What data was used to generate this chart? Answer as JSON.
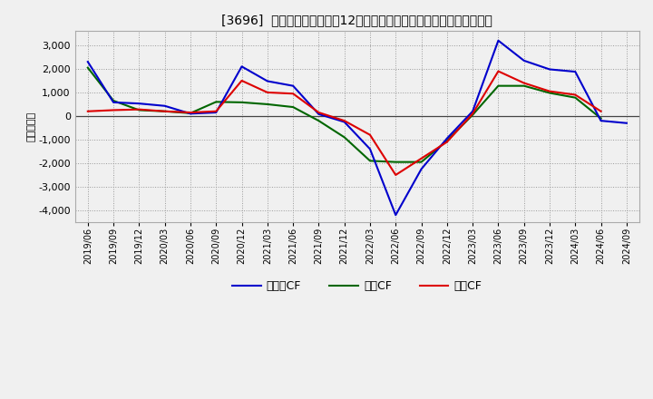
{
  "title": "[3696]  キャッシュフローの12か月移動合計の対前年同期増減額の推移",
  "ylabel": "（百万円）",
  "background_color": "#f0f0f0",
  "plot_background": "#f0f0f0",
  "grid_color": "#999999",
  "x_labels": [
    "2019/06",
    "2019/09",
    "2019/12",
    "2020/03",
    "2020/06",
    "2020/09",
    "2020/12",
    "2021/03",
    "2021/06",
    "2021/09",
    "2021/12",
    "2022/03",
    "2022/06",
    "2022/09",
    "2022/12",
    "2023/03",
    "2023/06",
    "2023/09",
    "2023/12",
    "2024/03",
    "2024/06",
    "2024/09"
  ],
  "operating_cf": [
    200,
    250,
    280,
    200,
    150,
    200,
    1500,
    1000,
    950,
    150,
    -200,
    -800,
    -2500,
    -1800,
    -1100,
    100,
    1900,
    1400,
    1050,
    900,
    200,
    null
  ],
  "investing_cf": [
    2050,
    650,
    250,
    200,
    120,
    600,
    580,
    500,
    380,
    -200,
    -900,
    -1900,
    -1950,
    -1950,
    -1050,
    50,
    1280,
    1280,
    980,
    780,
    -100,
    null
  ],
  "free_cf": [
    2300,
    580,
    530,
    430,
    100,
    150,
    2100,
    1480,
    1280,
    80,
    -250,
    -1400,
    -4200,
    -2250,
    -950,
    200,
    3200,
    2350,
    1980,
    1880,
    -200,
    -300
  ],
  "operating_color": "#dd0000",
  "investing_color": "#006600",
  "free_color": "#0000cc",
  "ylim": [
    -4500,
    3600
  ],
  "yticks": [
    -4000,
    -3000,
    -2000,
    -1000,
    0,
    1000,
    2000,
    3000
  ],
  "legend_labels": [
    "営業CF",
    "投資CF",
    "フリーCF"
  ]
}
